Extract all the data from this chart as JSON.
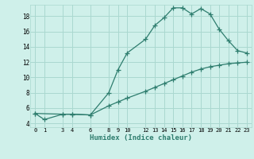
{
  "title": "",
  "xlabel": "Humidex (Indice chaleur)",
  "ylabel": "",
  "bg_color": "#cff0ea",
  "line_color": "#2e7d6e",
  "grid_color": "#aad8d0",
  "xlim": [
    -0.5,
    23.5
  ],
  "ylim": [
    3.5,
    19.5
  ],
  "xticks": [
    0,
    1,
    3,
    4,
    6,
    8,
    9,
    10,
    12,
    13,
    14,
    15,
    16,
    17,
    18,
    19,
    20,
    21,
    22,
    23
  ],
  "yticks": [
    4,
    6,
    8,
    10,
    12,
    14,
    16,
    18
  ],
  "upper_line_x": [
    0,
    3,
    4,
    6,
    8,
    9,
    10,
    12,
    13,
    14,
    15,
    16,
    17,
    18,
    19,
    20,
    21,
    22,
    23
  ],
  "upper_line_y": [
    5.3,
    5.2,
    5.2,
    5.1,
    8.0,
    11.0,
    13.2,
    15.0,
    16.8,
    17.8,
    19.1,
    19.1,
    18.3,
    19.0,
    18.3,
    16.3,
    14.8,
    13.5,
    13.2
  ],
  "lower_line_x": [
    0,
    1,
    3,
    4,
    6,
    8,
    9,
    10,
    12,
    13,
    14,
    15,
    16,
    17,
    18,
    19,
    20,
    21,
    22,
    23
  ],
  "lower_line_y": [
    5.3,
    4.5,
    5.2,
    5.2,
    5.1,
    6.3,
    6.8,
    7.3,
    8.2,
    8.7,
    9.2,
    9.7,
    10.2,
    10.7,
    11.1,
    11.4,
    11.6,
    11.8,
    11.9,
    12.0
  ],
  "marker": "+"
}
